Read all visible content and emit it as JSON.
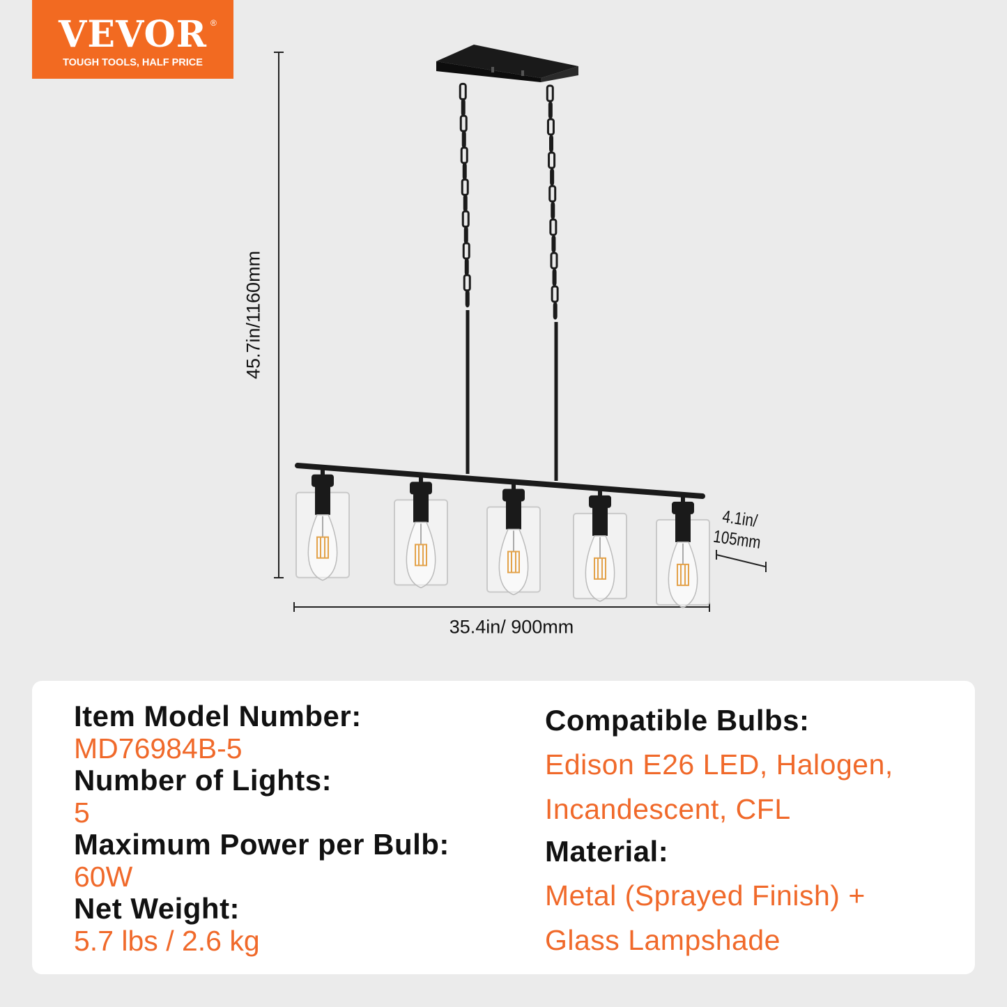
{
  "logo": {
    "brand": "VEVOR",
    "registered": "®",
    "tagline": "TOUGH TOOLS, HALF PRICE",
    "color": "#f26a21"
  },
  "dimensions": {
    "height": "45.7in/1160mm",
    "width": "35.4in/ 900mm",
    "depth_line1": "4.1in/",
    "depth_line2": "105mm"
  },
  "product": {
    "lights_count": 5,
    "finish_color": "#1a1a1a"
  },
  "specs": {
    "left": [
      {
        "label": "Item Model Number:",
        "value": "MD76984B-5"
      },
      {
        "label": "Number of Lights:",
        "value": "5"
      },
      {
        "label": "Maximum Power per Bulb:",
        "value": "60W"
      },
      {
        "label": "Net Weight:",
        "value": "5.7 lbs / 2.6 kg"
      }
    ],
    "right": [
      {
        "label": "Compatible Bulbs:",
        "value_line1": "Edison E26 LED, Halogen,",
        "value_line2": "Incandescent, CFL"
      },
      {
        "label": "Material:",
        "value_line1": "Metal (Sprayed Finish) +",
        "value_line2": "Glass Lampshade"
      }
    ],
    "accent_color": "#f0692a"
  }
}
